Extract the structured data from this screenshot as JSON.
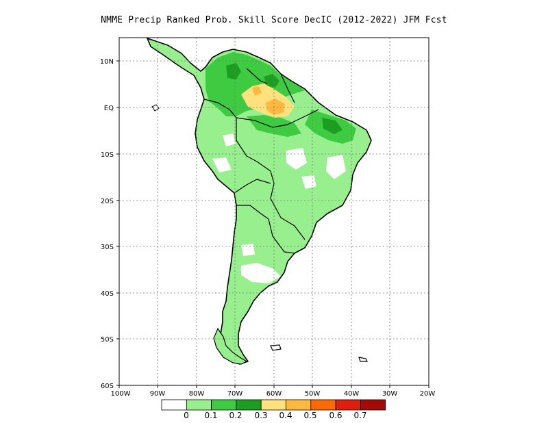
{
  "title": "NMME Precip Ranked Prob. Skill Score DecIC (2012-2022) JFM Fcst",
  "map": {
    "lat_labels": [
      "10N",
      "EQ",
      "10S",
      "20S",
      "30S",
      "40S",
      "50S",
      "60S"
    ],
    "lon_labels": [
      "100W",
      "90W",
      "80W",
      "70W",
      "60W",
      "50W",
      "40W",
      "30W",
      "20W"
    ],
    "grid": "dotted"
  },
  "colorbar": {
    "colors": [
      "#ffffff",
      "#98ef8e",
      "#3ecb42",
      "#1d9e22",
      "#ffe27e",
      "#ffba3e",
      "#ff6a00",
      "#e01e0e",
      "#a50a06"
    ],
    "labels": [
      "0",
      "0.1",
      "0.2",
      "0.3",
      "0.4",
      "0.5",
      "0.6",
      "0.7"
    ]
  },
  "colors": {
    "light_green": "#98ef8e",
    "mid_green": "#3ecb42",
    "dark_green": "#1d9e22",
    "yellow": "#ffe27e",
    "orange": "#ffba3e",
    "coastline": "#000000"
  }
}
